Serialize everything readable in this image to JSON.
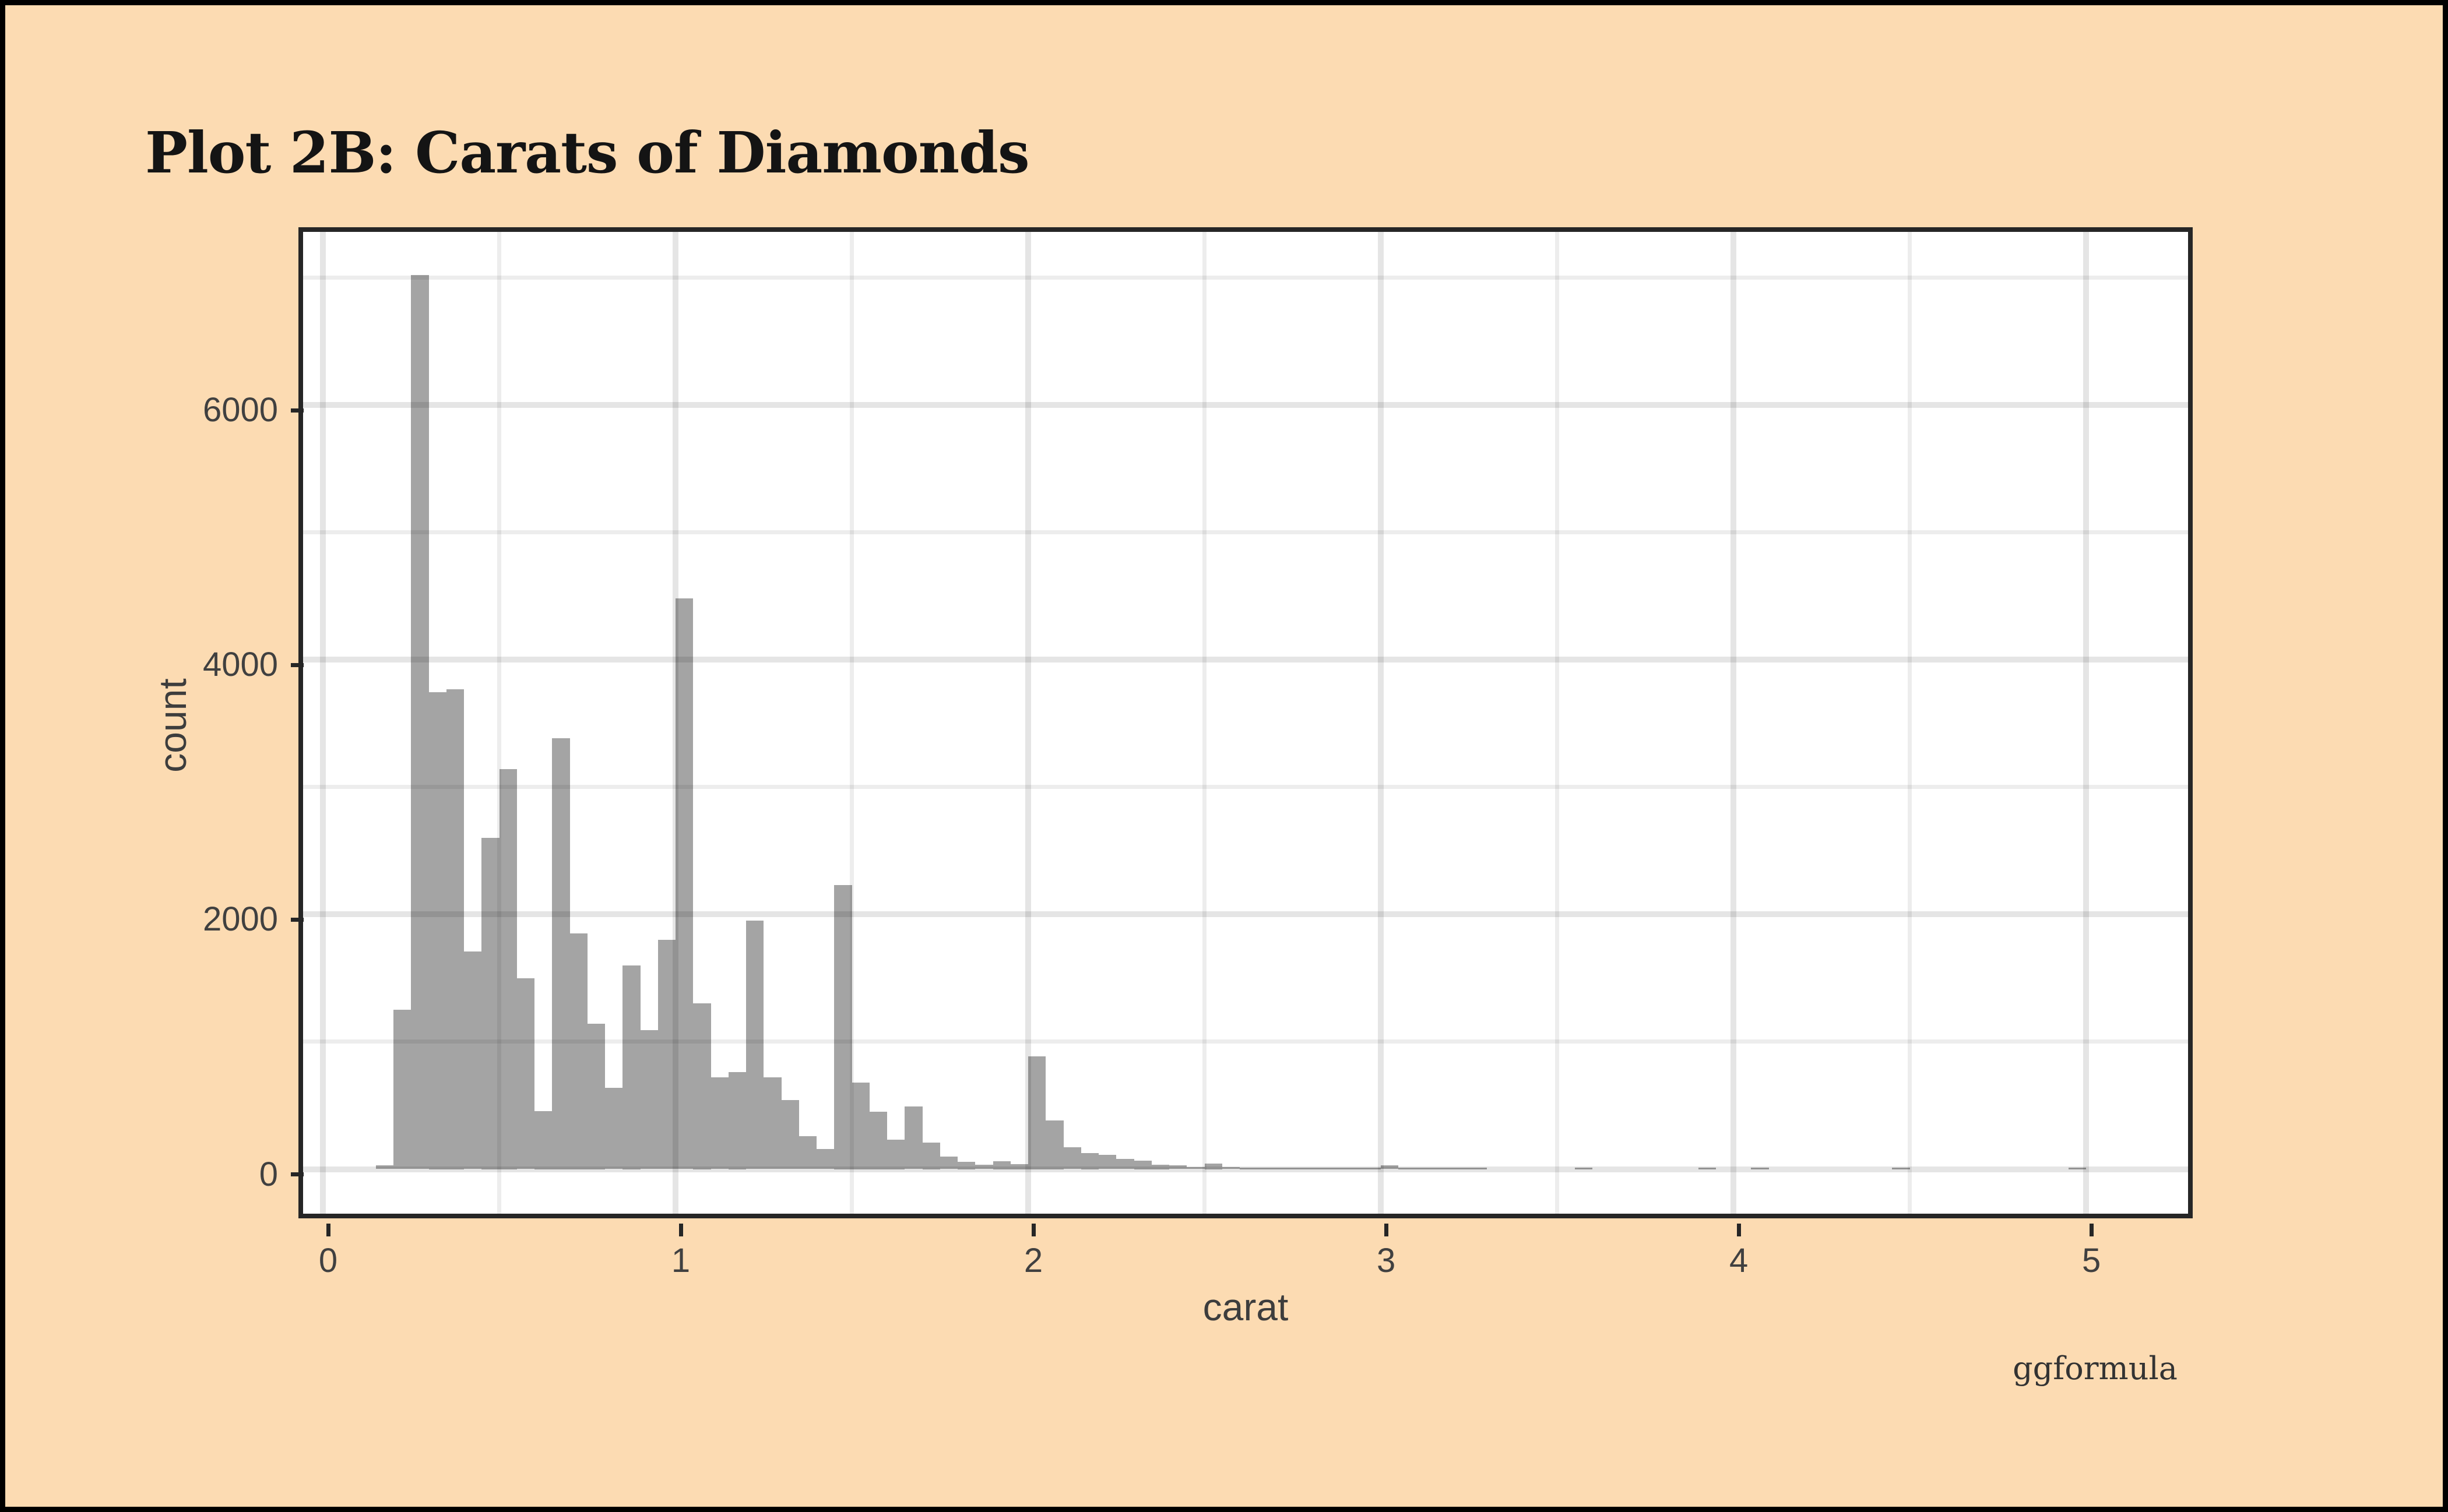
{
  "title": "Plot 2B: Carats of Diamonds",
  "caption": "ggformula",
  "colors": {
    "background": "#FCDBB2",
    "frame_border": "#000000",
    "panel_background": "#ffffff",
    "panel_border": "#262626",
    "bar_fill": "#A4A4A4",
    "grid_major": "#E6E6E6",
    "grid_minor": "#EDEDED",
    "tick_color": "#262626",
    "text_color": "#404040",
    "title_color": "#141414"
  },
  "chart_data": {
    "type": "bar",
    "subtype": "histogram",
    "title": "Plot 2B: Carats of Diamonds",
    "xlabel": "carat",
    "ylabel": "count",
    "caption": "ggformula",
    "bin_start": 0.15,
    "bin_width": 0.05,
    "counts": [
      30,
      1250,
      7020,
      3745,
      3770,
      1710,
      2600,
      3140,
      1500,
      455,
      3385,
      1850,
      1140,
      640,
      1600,
      1090,
      1800,
      4480,
      1300,
      720,
      760,
      1950,
      720,
      540,
      260,
      160,
      2230,
      680,
      450,
      230,
      490,
      210,
      100,
      55,
      35,
      60,
      40,
      885,
      380,
      170,
      125,
      110,
      78,
      65,
      36,
      28,
      16,
      42,
      18,
      12,
      10,
      8,
      6,
      9,
      4,
      3,
      6,
      32,
      6,
      3,
      2,
      3,
      2,
      0,
      0,
      0,
      0,
      0,
      5,
      0,
      0,
      0,
      0,
      0,
      0,
      5,
      0,
      0,
      3,
      0,
      0,
      0,
      0,
      0,
      0,
      0,
      3,
      0,
      0,
      0,
      0,
      0,
      0,
      0,
      0,
      0,
      2
    ],
    "xlim": [
      -0.0562,
      5.289
    ],
    "ylim": [
      -350,
      7360
    ],
    "x_major_ticks": [
      0,
      1,
      2,
      3,
      4,
      5
    ],
    "x_minor_gridlines": [
      0.5,
      1.5,
      2.5,
      3.5,
      4.5
    ],
    "y_major_ticks": [
      0,
      2000,
      4000,
      6000
    ],
    "y_minor_gridlines": [
      1000,
      3000,
      5000,
      7000
    ],
    "grid": true,
    "legend": "none"
  }
}
